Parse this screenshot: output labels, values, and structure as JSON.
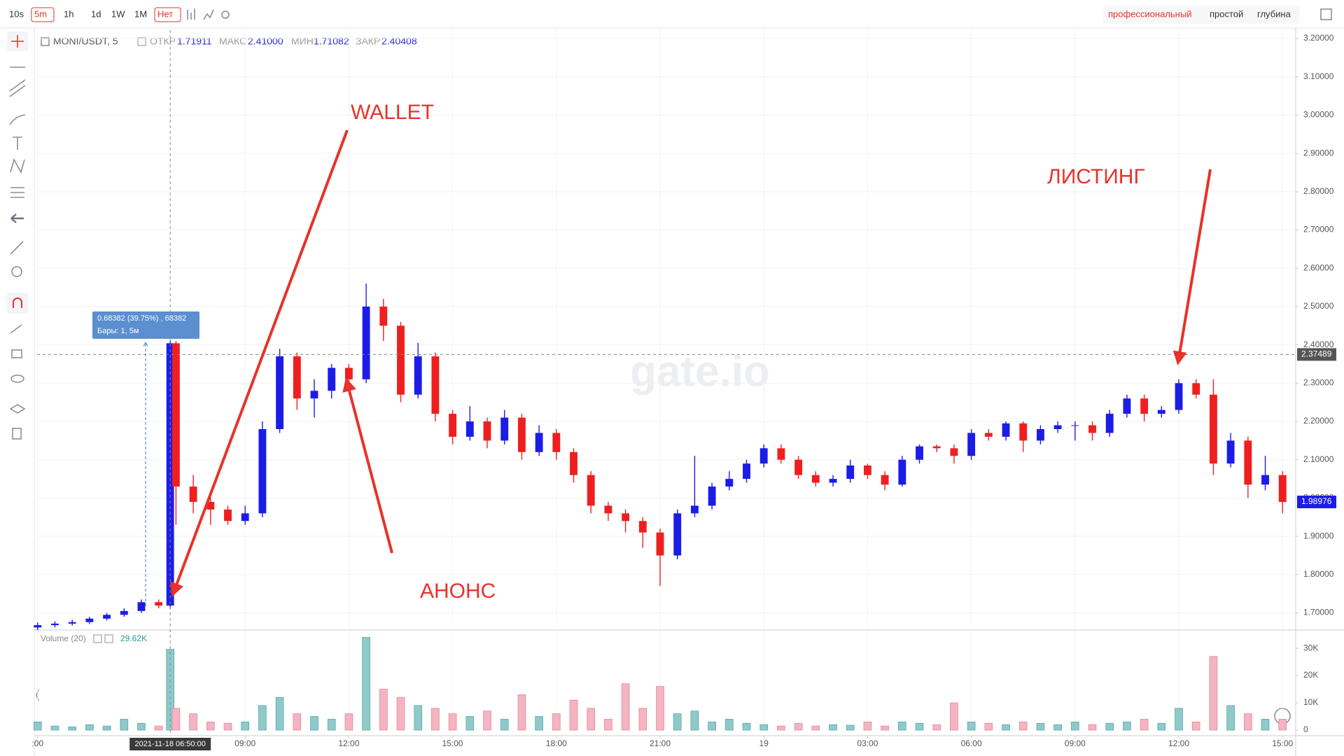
{
  "toolbar": {
    "intervals": [
      "10s",
      "5m",
      "1h",
      "1d",
      "1W",
      "1M"
    ],
    "chart_type": "Нет",
    "views": [
      "профессиональный",
      "простой",
      "глубина"
    ]
  },
  "legend": {
    "symbol": "MONI/USDT, 5",
    "open_label": "ОТКР",
    "open": 1.71911,
    "high_label": "МАКС",
    "high": {
      "value": 2.41,
      "label": "2.41000"
    },
    "low_label": "МИН",
    "low": 1.71082,
    "close_label": "ЗАКР",
    "close": 2.40408
  },
  "measure": {
    "text": "0.68382 (39.75%) , 68382",
    "bars": "Бары: 1, 5м"
  },
  "annotations": [
    "WALLET",
    "АНОНС",
    "ЛИСТИНГ"
  ],
  "watermark": "gate.io",
  "chart_data": {
    "type": "candlestick",
    "x": [
      3.0,
      3.5,
      4.0,
      4.5,
      5.0,
      5.5,
      6.0,
      6.5,
      6.8333,
      7.0,
      7.5,
      8.0,
      8.5,
      9.0,
      9.5,
      10.0,
      10.5,
      11.0,
      11.5,
      12.0,
      12.5,
      13.0,
      13.5,
      14.0,
      14.5,
      15.0,
      15.5,
      16.0,
      16.5,
      17.0,
      17.5,
      18.0,
      18.5,
      19.0,
      19.5,
      20.0,
      20.5,
      21.0,
      21.5,
      22.0,
      22.5,
      23.0,
      23.5,
      24.0,
      24.5,
      25.0,
      25.5,
      26.0,
      26.5,
      27.0,
      27.5,
      28.0,
      28.5,
      29.0,
      29.5,
      30.0,
      30.5,
      31.0,
      31.5,
      32.0,
      32.5,
      33.0,
      33.5,
      34.0,
      34.5,
      35.0,
      35.5,
      36.0,
      36.5,
      37.0,
      37.5,
      38.0,
      38.5,
      39.0
    ],
    "open": [
      1.662,
      1.668,
      1.672,
      1.676,
      1.685,
      1.695,
      1.705,
      1.728,
      1.71911,
      2.40408,
      2.03,
      1.99,
      1.97,
      1.94,
      1.96,
      2.18,
      2.37,
      2.26,
      2.28,
      2.34,
      2.31,
      2.5,
      2.45,
      2.27,
      2.37,
      2.22,
      2.16,
      2.2,
      2.15,
      2.21,
      2.12,
      2.17,
      2.12,
      2.06,
      1.98,
      1.96,
      1.94,
      1.91,
      1.85,
      1.96,
      1.98,
      2.03,
      2.05,
      2.09,
      2.13,
      2.1,
      2.06,
      2.04,
      2.05,
      2.085,
      2.06,
      2.035,
      2.1,
      2.135,
      2.13,
      2.11,
      2.17,
      2.16,
      2.195,
      2.15,
      2.18,
      2.19,
      2.19,
      2.17,
      2.22,
      2.26,
      2.22,
      2.23,
      2.3,
      2.27,
      2.09,
      2.15,
      2.035,
      2.06
    ],
    "high": [
      1.675,
      1.678,
      1.682,
      1.69,
      1.7,
      1.712,
      1.735,
      1.735,
      2.41,
      2.41,
      2.06,
      2.01,
      1.98,
      1.98,
      2.2,
      2.39,
      2.38,
      2.31,
      2.35,
      2.35,
      2.56,
      2.52,
      2.46,
      2.405,
      2.38,
      2.23,
      2.24,
      2.21,
      2.23,
      2.22,
      2.19,
      2.18,
      2.13,
      2.07,
      1.99,
      1.97,
      1.95,
      1.92,
      1.97,
      2.11,
      2.04,
      2.07,
      2.1,
      2.14,
      2.14,
      2.11,
      2.07,
      2.06,
      2.1,
      2.09,
      2.07,
      2.11,
      2.14,
      2.14,
      2.14,
      2.18,
      2.18,
      2.2,
      2.2,
      2.19,
      2.2,
      2.2,
      2.2,
      2.23,
      2.27,
      2.27,
      2.24,
      2.31,
      2.31,
      2.31,
      2.17,
      2.16,
      2.11,
      2.07
    ],
    "low": [
      1.655,
      1.662,
      1.667,
      1.671,
      1.68,
      1.69,
      1.7,
      1.712,
      1.71082,
      1.93,
      1.96,
      1.93,
      1.93,
      1.93,
      1.95,
      2.17,
      2.23,
      2.21,
      2.26,
      2.28,
      2.3,
      2.41,
      2.25,
      2.26,
      2.2,
      2.14,
      2.15,
      2.13,
      2.14,
      2.1,
      2.11,
      2.1,
      2.04,
      1.96,
      1.94,
      1.91,
      1.87,
      1.77,
      1.84,
      1.95,
      1.97,
      2.02,
      2.04,
      2.08,
      2.09,
      2.05,
      2.03,
      2.03,
      2.04,
      2.05,
      2.02,
      2.03,
      2.09,
      2.12,
      2.09,
      2.1,
      2.15,
      2.15,
      2.12,
      2.14,
      2.17,
      2.15,
      2.15,
      2.16,
      2.21,
      2.2,
      2.21,
      2.22,
      2.26,
      2.06,
      2.08,
      2.0,
      2.02,
      1.96
    ],
    "close": [
      1.668,
      1.672,
      1.676,
      1.685,
      1.695,
      1.705,
      1.728,
      1.71911,
      2.40408,
      2.03,
      1.99,
      1.97,
      1.94,
      1.96,
      2.18,
      2.37,
      2.26,
      2.28,
      2.34,
      2.31,
      2.5,
      2.45,
      2.27,
      2.37,
      2.22,
      2.16,
      2.2,
      2.15,
      2.21,
      2.12,
      2.17,
      2.12,
      2.06,
      1.98,
      1.96,
      1.94,
      1.91,
      1.85,
      1.96,
      1.98,
      2.03,
      2.05,
      2.09,
      2.13,
      2.1,
      2.06,
      2.04,
      2.05,
      2.085,
      2.06,
      2.035,
      2.1,
      2.135,
      2.13,
      2.11,
      2.17,
      2.16,
      2.195,
      2.15,
      2.18,
      2.19,
      2.19,
      2.17,
      2.22,
      2.26,
      2.22,
      2.23,
      2.3,
      2.27,
      2.09,
      2.15,
      2.035,
      2.06,
      1.98976
    ],
    "up_color": "#1c1ce8",
    "down_color": "#ef1f1f",
    "xlim": [
      2.984,
      39.38
    ],
    "xticks": [
      {
        "value": 3,
        "label": ":00"
      },
      {
        "value": 9,
        "label": "09:00"
      },
      {
        "value": 12,
        "label": "12:00"
      },
      {
        "value": 15,
        "label": "15:00"
      },
      {
        "value": 18,
        "label": "18:00"
      },
      {
        "value": 21,
        "label": "21:00"
      },
      {
        "value": 24,
        "label": "19"
      },
      {
        "value": 27,
        "label": "03:00"
      },
      {
        "value": 30,
        "label": "06:00"
      },
      {
        "value": 33,
        "label": "09:00"
      },
      {
        "value": 36,
        "label": "12:00"
      },
      {
        "value": 39,
        "label": "15:00"
      }
    ],
    "ylim": [
      1.659,
      3.222
    ],
    "yticks": [
      {
        "value": 1.7,
        "label": "1.70000"
      },
      {
        "value": 1.8,
        "label": "1.80000"
      },
      {
        "value": 1.9,
        "label": "1.90000"
      },
      {
        "value": 2.0,
        "label": "2.00000"
      },
      {
        "value": 2.1,
        "label": "2.10000"
      },
      {
        "value": 2.2,
        "label": "2.20000"
      },
      {
        "value": 2.3,
        "label": "2.30000"
      },
      {
        "value": 2.4,
        "label": "2.40000"
      },
      {
        "value": 2.5,
        "label": "2.50000"
      },
      {
        "value": 2.6,
        "label": "2.60000"
      },
      {
        "value": 2.7,
        "label": "2.70000"
      },
      {
        "value": 2.8,
        "label": "2.80000"
      },
      {
        "value": 2.9,
        "label": "2.90000"
      },
      {
        "value": 3.0,
        "label": "3.00000"
      },
      {
        "value": 3.1,
        "label": "3.10000"
      },
      {
        "value": 3.2,
        "label": "3.20000"
      }
    ],
    "grid": true,
    "last_price": 1.98976,
    "last_price_color": "#1c1ce8",
    "crosshair": {
      "x": 6.8333,
      "x_label": "2021-11-18 06:50:00",
      "y": 2.37489
    },
    "volume": {
      "title": "Volume (20)",
      "value_label": "29.62K",
      "values": [
        3000,
        1500,
        1200,
        2000,
        1500,
        4000,
        2500,
        1500,
        29620,
        8000,
        6000,
        3000,
        2500,
        3000,
        9000,
        12000,
        6000,
        5000,
        4000,
        6000,
        34000,
        15000,
        12000,
        9000,
        8000,
        6000,
        5000,
        7000,
        4000,
        13000,
        5000,
        6000,
        11000,
        8000,
        4000,
        17000,
        8000,
        16000,
        6000,
        7000,
        3000,
        4000,
        2500,
        2000,
        1500,
        2500,
        1500,
        2000,
        1800,
        3000,
        1500,
        3000,
        2500,
        2000,
        10000,
        3000,
        2500,
        2000,
        3000,
        2500,
        2000,
        3000,
        2000,
        2500,
        3000,
        4000,
        2500,
        8000,
        3000,
        27000,
        9000,
        6000,
        4000,
        4000
      ],
      "ylim": [
        0,
        36700
      ],
      "yticks": [
        0,
        {
          "value": 10000,
          "label": "10K"
        },
        {
          "value": 20000,
          "label": "20K"
        },
        {
          "value": 30000,
          "label": "30K"
        }
      ],
      "up_color": "#8fc9c9",
      "down_color": "#f4b4c1"
    }
  }
}
